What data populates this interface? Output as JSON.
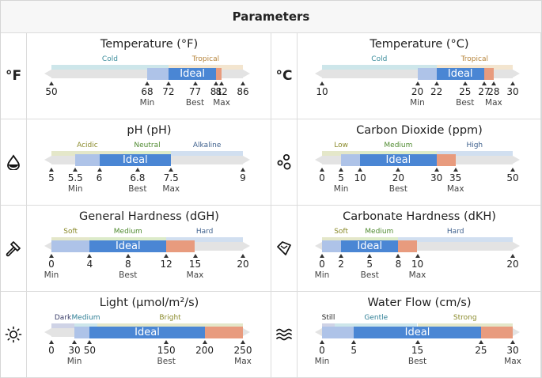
{
  "header": {
    "title": "Parameters"
  },
  "colors": {
    "track": "#e3e3e3",
    "min_seg": "#aec3e8",
    "ideal_seg": "#4a86d4",
    "max_seg": "#e89b7e",
    "zone_cold": "#cde6ea",
    "zone_warm": "#f3e5cf",
    "zone_green": "#dcebc9",
    "zone_blue": "#d1dff0",
    "zone_dark": "#cfd3e6"
  },
  "gauges": [
    {
      "title": "Temperature (°F)",
      "icon": "fahrenheit-icon",
      "glyph": "°F",
      "domain": [
        50,
        86
      ],
      "min": 68,
      "ideal_start": 72,
      "ideal_end": 81,
      "max": 82,
      "best": 77,
      "ideal_label": "Ideal",
      "zones": [
        {
          "label": "Cold",
          "from": 50,
          "to": 72,
          "color": "#cde6ea",
          "text_color": "#3b8d9c"
        },
        {
          "label": "Tropical",
          "from": 72,
          "to": 86,
          "color": "#f3e5cf",
          "text_color": "#b6843a"
        }
      ],
      "ticks": [
        {
          "value": 50,
          "text": "50"
        },
        {
          "value": 68,
          "text": "68",
          "sub": "Min"
        },
        {
          "value": 72,
          "text": "72"
        },
        {
          "value": 77,
          "text": "77",
          "sub": "Best"
        },
        {
          "value": 81,
          "text": "81"
        },
        {
          "value": 82,
          "text": "82",
          "sub": "Max"
        },
        {
          "value": 86,
          "text": "86"
        }
      ]
    },
    {
      "title": "Temperature (°C)",
      "icon": "celsius-icon",
      "glyph": "°C",
      "domain": [
        10,
        30
      ],
      "min": 20,
      "ideal_start": 22,
      "ideal_end": 27,
      "max": 28,
      "best": 25,
      "ideal_label": "Ideal",
      "zones": [
        {
          "label": "Cold",
          "from": 10,
          "to": 22,
          "color": "#cde6ea",
          "text_color": "#3b8d9c"
        },
        {
          "label": "Tropical",
          "from": 22,
          "to": 30,
          "color": "#f3e5cf",
          "text_color": "#b6843a"
        }
      ],
      "ticks": [
        {
          "value": 10,
          "text": "10"
        },
        {
          "value": 20,
          "text": "20",
          "sub": "Min"
        },
        {
          "value": 22,
          "text": "22"
        },
        {
          "value": 25,
          "text": "25",
          "sub": "Best"
        },
        {
          "value": 27,
          "text": "27"
        },
        {
          "value": 28,
          "text": "28",
          "sub": "Max"
        },
        {
          "value": 30,
          "text": "30"
        }
      ]
    },
    {
      "title": "pH (pH)",
      "icon": "water-drop-icon",
      "domain": [
        5,
        9
      ],
      "min": 5.5,
      "ideal_start": 6,
      "ideal_end": 7.5,
      "max": 7.5,
      "best": 6.8,
      "ideal_label": "Ideal",
      "zones": [
        {
          "label": "Acidic",
          "from": 5,
          "to": 6.5,
          "color": "#e4e7c9",
          "text_color": "#8a8a2a"
        },
        {
          "label": "Neutral",
          "from": 6.5,
          "to": 7.5,
          "color": "#dcebc9",
          "text_color": "#4f8a2f"
        },
        {
          "label": "Alkaline",
          "from": 7.5,
          "to": 9,
          "color": "#d1dff0",
          "text_color": "#3d5f8c"
        }
      ],
      "ticks": [
        {
          "value": 5,
          "text": "5"
        },
        {
          "value": 5.5,
          "text": "5.5",
          "sub": "Min"
        },
        {
          "value": 6,
          "text": "6"
        },
        {
          "value": 6.8,
          "text": "6.8",
          "sub": "Best"
        },
        {
          "value": 7.5,
          "text": "7.5",
          "sub": "Max"
        },
        {
          "value": 9,
          "text": "9"
        }
      ]
    },
    {
      "title": "Carbon Dioxide (ppm)",
      "icon": "bubbles-icon",
      "domain": [
        0,
        50
      ],
      "min": 5,
      "ideal_start": 10,
      "ideal_end": 30,
      "max": 35,
      "best": 20,
      "ideal_label": "Ideal",
      "zones": [
        {
          "label": "Low",
          "from": 0,
          "to": 10,
          "color": "#e4e7c9",
          "text_color": "#8a8a2a"
        },
        {
          "label": "Medium",
          "from": 10,
          "to": 30,
          "color": "#dcebc9",
          "text_color": "#4f8a2f"
        },
        {
          "label": "High",
          "from": 30,
          "to": 50,
          "color": "#d1dff0",
          "text_color": "#3d5f8c"
        }
      ],
      "ticks": [
        {
          "value": 0,
          "text": "0"
        },
        {
          "value": 5,
          "text": "5",
          "sub": "Min"
        },
        {
          "value": 10,
          "text": "10"
        },
        {
          "value": 20,
          "text": "20",
          "sub": "Best"
        },
        {
          "value": 30,
          "text": "30"
        },
        {
          "value": 35,
          "text": "35",
          "sub": "Max"
        },
        {
          "value": 50,
          "text": "50"
        }
      ]
    },
    {
      "title": "General Hardness (dGH)",
      "icon": "hammer-icon",
      "domain": [
        0,
        20
      ],
      "min": 0,
      "ideal_start": 4,
      "ideal_end": 12,
      "max": 15,
      "best": 8,
      "ideal_label": "Ideal",
      "zones": [
        {
          "label": "Soft",
          "from": 0,
          "to": 4,
          "color": "#e4e7c9",
          "text_color": "#8a8a2a"
        },
        {
          "label": "Medium",
          "from": 4,
          "to": 12,
          "color": "#dcebc9",
          "text_color": "#4f8a2f"
        },
        {
          "label": "Hard",
          "from": 12,
          "to": 20,
          "color": "#d1dff0",
          "text_color": "#3d5f8c"
        }
      ],
      "ticks": [
        {
          "value": 0,
          "text": "0",
          "sub": "Min"
        },
        {
          "value": 4,
          "text": "4"
        },
        {
          "value": 8,
          "text": "8",
          "sub": "Best"
        },
        {
          "value": 12,
          "text": "12"
        },
        {
          "value": 15,
          "text": "15",
          "sub": "Max"
        },
        {
          "value": 20,
          "text": "20"
        }
      ]
    },
    {
      "title": "Carbonate Hardness (dKH)",
      "icon": "gem-icon",
      "domain": [
        0,
        20
      ],
      "min": 0,
      "ideal_start": 2,
      "ideal_end": 8,
      "max": 10,
      "best": 5,
      "ideal_label": "Ideal",
      "zones": [
        {
          "label": "Soft",
          "from": 0,
          "to": 4,
          "color": "#e4e7c9",
          "text_color": "#8a8a2a"
        },
        {
          "label": "Medium",
          "from": 4,
          "to": 8,
          "color": "#dcebc9",
          "text_color": "#4f8a2f"
        },
        {
          "label": "Hard",
          "from": 8,
          "to": 20,
          "color": "#d1dff0",
          "text_color": "#3d5f8c"
        }
      ],
      "ticks": [
        {
          "value": 0,
          "text": "0",
          "sub": "Min"
        },
        {
          "value": 2,
          "text": "2"
        },
        {
          "value": 5,
          "text": "5",
          "sub": "Best"
        },
        {
          "value": 8,
          "text": "8"
        },
        {
          "value": 10,
          "text": "10",
          "sub": "Max"
        },
        {
          "value": 20,
          "text": "20"
        }
      ]
    },
    {
      "title": "Light (µmol/m²/s)",
      "icon": "sun-icon",
      "domain": [
        0,
        250
      ],
      "min": 30,
      "ideal_start": 50,
      "ideal_end": 200,
      "max": 250,
      "best": 150,
      "ideal_label": "Ideal",
      "zones": [
        {
          "label": "Dark",
          "from": 0,
          "to": 30,
          "color": "#cfd3e6",
          "text_color": "#3b3f6a"
        },
        {
          "label": "Medium",
          "from": 30,
          "to": 60,
          "color": "#cde6ea",
          "text_color": "#2f7f96"
        },
        {
          "label": "Bright",
          "from": 60,
          "to": 250,
          "color": "#e4e7c9",
          "text_color": "#8a8a2a"
        }
      ],
      "ticks": [
        {
          "value": 0,
          "text": "0"
        },
        {
          "value": 30,
          "text": "30",
          "sub": "Min"
        },
        {
          "value": 50,
          "text": "50"
        },
        {
          "value": 150,
          "text": "150",
          "sub": "Best"
        },
        {
          "value": 200,
          "text": "200"
        },
        {
          "value": 250,
          "text": "250",
          "sub": "Max"
        }
      ]
    },
    {
      "title": "Water Flow (cm/s)",
      "icon": "waves-icon",
      "domain": [
        0,
        30
      ],
      "min": 0,
      "ideal_start": 5,
      "ideal_end": 25,
      "max": 30,
      "best": 15,
      "ideal_label": "Ideal",
      "zones": [
        {
          "label": "Still",
          "from": 0,
          "to": 2,
          "color": "#cfd3e6",
          "text_color": "#222"
        },
        {
          "label": "Gentle",
          "from": 2,
          "to": 15,
          "color": "#cde6ea",
          "text_color": "#2f7f96"
        },
        {
          "label": "Strong",
          "from": 15,
          "to": 30,
          "color": "#e4e7c9",
          "text_color": "#8a8a2a"
        }
      ],
      "ticks": [
        {
          "value": 0,
          "text": "0",
          "sub": "Min"
        },
        {
          "value": 5,
          "text": "5"
        },
        {
          "value": 15,
          "text": "15",
          "sub": "Best"
        },
        {
          "value": 25,
          "text": "25"
        },
        {
          "value": 30,
          "text": "30",
          "sub": "Max"
        }
      ]
    }
  ]
}
